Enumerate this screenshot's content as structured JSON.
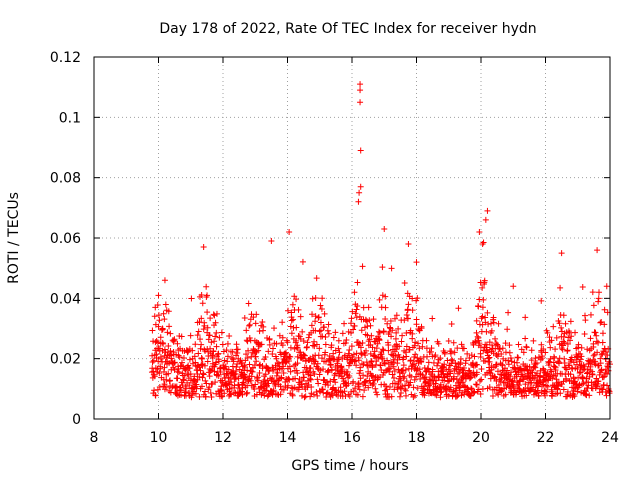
{
  "chart_data": {
    "type": "scatter",
    "title": "Day 178 of 2022, Rate Of TEC Index for receiver hydn",
    "xlabel": "GPS time / hours",
    "ylabel": "ROTI / TECUs",
    "xlim": [
      8,
      24
    ],
    "ylim": [
      0,
      0.12
    ],
    "xticks": [
      "8",
      "10",
      "12",
      "14",
      "16",
      "18",
      "20",
      "22",
      "24"
    ],
    "yticks": [
      "0",
      "0.02",
      "0.04",
      "0.06",
      "0.08",
      "0.1",
      "0.12"
    ],
    "grid": true,
    "marker": "+",
    "series": [
      {
        "name": "ROTI",
        "color": "#ff0000",
        "x_range": [
          9.8,
          24
        ],
        "sample_step_hours": 0.02,
        "baseline_approx": 0.012,
        "notable_points": [
          {
            "x": 16.25,
            "y": 0.111
          },
          {
            "x": 16.25,
            "y": 0.109
          },
          {
            "x": 16.25,
            "y": 0.105
          },
          {
            "x": 16.27,
            "y": 0.089
          },
          {
            "x": 16.27,
            "y": 0.077
          },
          {
            "x": 16.22,
            "y": 0.075
          },
          {
            "x": 16.2,
            "y": 0.072
          },
          {
            "x": 20.2,
            "y": 0.069
          },
          {
            "x": 20.15,
            "y": 0.066
          },
          {
            "x": 19.95,
            "y": 0.062
          },
          {
            "x": 17.0,
            "y": 0.063
          },
          {
            "x": 14.05,
            "y": 0.062
          },
          {
            "x": 13.5,
            "y": 0.059
          },
          {
            "x": 11.4,
            "y": 0.057
          },
          {
            "x": 17.75,
            "y": 0.058
          },
          {
            "x": 23.6,
            "y": 0.056
          },
          {
            "x": 22.5,
            "y": 0.055
          },
          {
            "x": 20.05,
            "y": 0.058
          },
          {
            "x": 10.2,
            "y": 0.046
          },
          {
            "x": 10.0,
            "y": 0.041
          },
          {
            "x": 9.9,
            "y": 0.037
          },
          {
            "x": 18.0,
            "y": 0.052
          },
          {
            "x": 21.0,
            "y": 0.044
          },
          {
            "x": 23.9,
            "y": 0.044
          }
        ]
      }
    ]
  }
}
